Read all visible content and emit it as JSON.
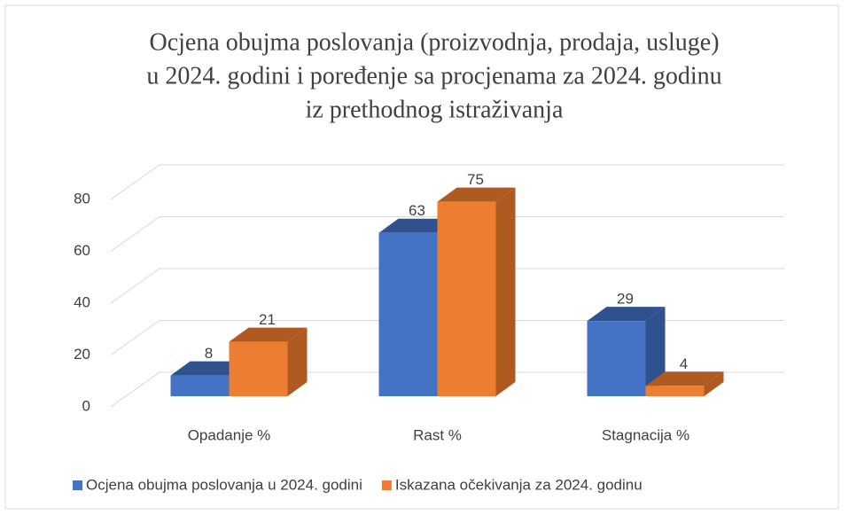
{
  "chart_data": {
    "type": "bar3d",
    "title": [
      "Ocjena obujma poslovanja (proizvodnja, prodaja, usluge)",
      "u 2024. godini i poređenje sa procjenama za 2024. godinu",
      "iz prethodnog istraživanja"
    ],
    "categories": [
      "Opadanje %",
      "Rast %",
      "Stagnacija %"
    ],
    "series": [
      {
        "name": "Ocjena obujma poslovanja u 2024. godini",
        "color": "#4472c4",
        "side": "#2f528f",
        "values": [
          8,
          63,
          29
        ]
      },
      {
        "name": "Iskazana očekivanja za 2024. godinu",
        "color": "#ed7d31",
        "side": "#ae5a21",
        "values": [
          21,
          75,
          4
        ]
      }
    ],
    "ylim": [
      0,
      80
    ],
    "yticks": [
      0,
      20,
      40,
      60,
      80
    ],
    "grid": true,
    "legend": "bottom"
  }
}
